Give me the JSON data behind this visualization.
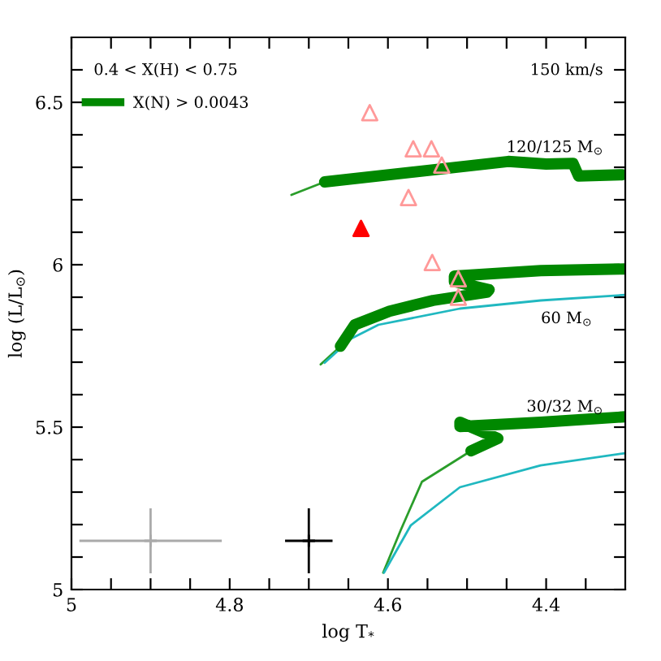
{
  "chart_data": {
    "type": "line",
    "xlabel": "log T$_{*}$",
    "ylabel": "log (L/L$_{⊙}$)",
    "xlim": [
      5,
      4.3
    ],
    "ylim": [
      5,
      6.7
    ],
    "xticks": [
      5,
      {
        "value": 4.95,
        "label": null
      },
      {
        "value": 4.9,
        "label": null
      },
      {
        "value": 4.85,
        "label": null
      },
      4.8,
      {
        "value": 4.75,
        "label": null
      },
      {
        "value": 4.7,
        "label": null
      },
      {
        "value": 4.65,
        "label": null
      },
      4.6,
      {
        "value": 4.55,
        "label": null
      },
      {
        "value": 4.5,
        "label": null
      },
      {
        "value": 4.45,
        "label": null
      },
      4.4,
      {
        "value": 4.35,
        "label": null
      }
    ],
    "yticks": [
      5,
      {
        "value": 5.1,
        "label": null
      },
      {
        "value": 5.2,
        "label": null
      },
      {
        "value": 5.3,
        "label": null
      },
      {
        "value": 5.4,
        "label": null
      },
      5.5,
      {
        "value": 5.6,
        "label": null
      },
      {
        "value": 5.7,
        "label": null
      },
      {
        "value": 5.8,
        "label": null
      },
      {
        "value": 5.9,
        "label": null
      },
      6,
      {
        "value": 6.1,
        "label": null
      },
      {
        "value": 6.2,
        "label": null
      },
      {
        "value": 6.3,
        "label": null
      },
      {
        "value": 6.4,
        "label": null
      },
      6.5,
      {
        "value": 6.6,
        "label": null
      }
    ],
    "grid": false,
    "legend": "top left",
    "series": [
      {
        "color": "#2a9d2a",
        "x": [
          4.722,
          4.68,
          null,
          4.685,
          4.66,
          null,
          4.606,
          4.584,
          4.557,
          4.495
        ],
        "values": [
          6.215,
          6.255,
          null,
          5.693,
          5.749,
          null,
          5.052,
          5.182,
          5.332,
          5.427
        ]
      },
      {
        "color": "#20b8c0",
        "x": [
          4.68,
          4.646,
          4.612,
          4.509,
          4.407,
          4.3,
          null,
          4.605,
          4.571,
          4.509,
          4.407,
          4.3
        ],
        "values": [
          5.698,
          5.773,
          5.815,
          5.865,
          5.89,
          5.907,
          null,
          5.052,
          5.198,
          5.315,
          5.382,
          5.42
        ]
      },
      {
        "name": "X(N) > 0.0043",
        "color": "#008800",
        "x": [
          4.68,
          4.448,
          4.4,
          4.366,
          4.359,
          4.304,
          null,
          4.66,
          4.642,
          4.598,
          4.543,
          4.475,
          4.472,
          4.516,
          4.516,
          4.407,
          4.3,
          null,
          4.495,
          4.461,
          4.509,
          4.509,
          4.407,
          4.3
        ],
        "values": [
          6.255,
          6.318,
          6.31,
          6.312,
          6.273,
          6.277,
          null,
          5.749,
          5.815,
          5.857,
          5.89,
          5.915,
          5.923,
          5.948,
          5.965,
          5.982,
          5.987,
          null,
          5.427,
          5.465,
          5.515,
          5.502,
          5.515,
          5.532
        ]
      },
      {
        "type": "scatter",
        "color": "#ff9999",
        "marker": "triangle",
        "x": [
          4.623,
          4.568,
          4.545,
          4.532,
          4.574,
          4.544,
          4.511,
          4.511
        ],
        "values": [
          6.468,
          6.357,
          6.357,
          6.307,
          6.207,
          6.007,
          5.957,
          5.9
        ]
      },
      {
        "type": "scatter",
        "color": "#ff0000",
        "marker": "triangle",
        "x": [
          4.634
        ],
        "values": [
          6.112
        ]
      },
      {
        "type": "scatter",
        "color": "#aaaaaa",
        "marker": "cross",
        "x": [
          4.9
        ],
        "values": [
          5.15
        ],
        "xerrors": [
          [
            4.81,
            4.99
          ]
        ],
        "errors": [
          [
            5.05,
            5.25
          ]
        ]
      },
      {
        "type": "scatter",
        "color": "#000000",
        "marker": "cross",
        "x": [
          4.7
        ],
        "values": [
          5.15
        ],
        "xerrors": [
          [
            4.67,
            4.73
          ]
        ],
        "errors": [
          [
            5.05,
            5.25
          ]
        ]
      }
    ],
    "annotations": [
      "0.4 < X(H) < 0.75",
      "150 km/s",
      "120/125 M$_{⊙}$",
      "60 M$_{⊙}$",
      "30/32 M$_{⊙}$"
    ]
  }
}
